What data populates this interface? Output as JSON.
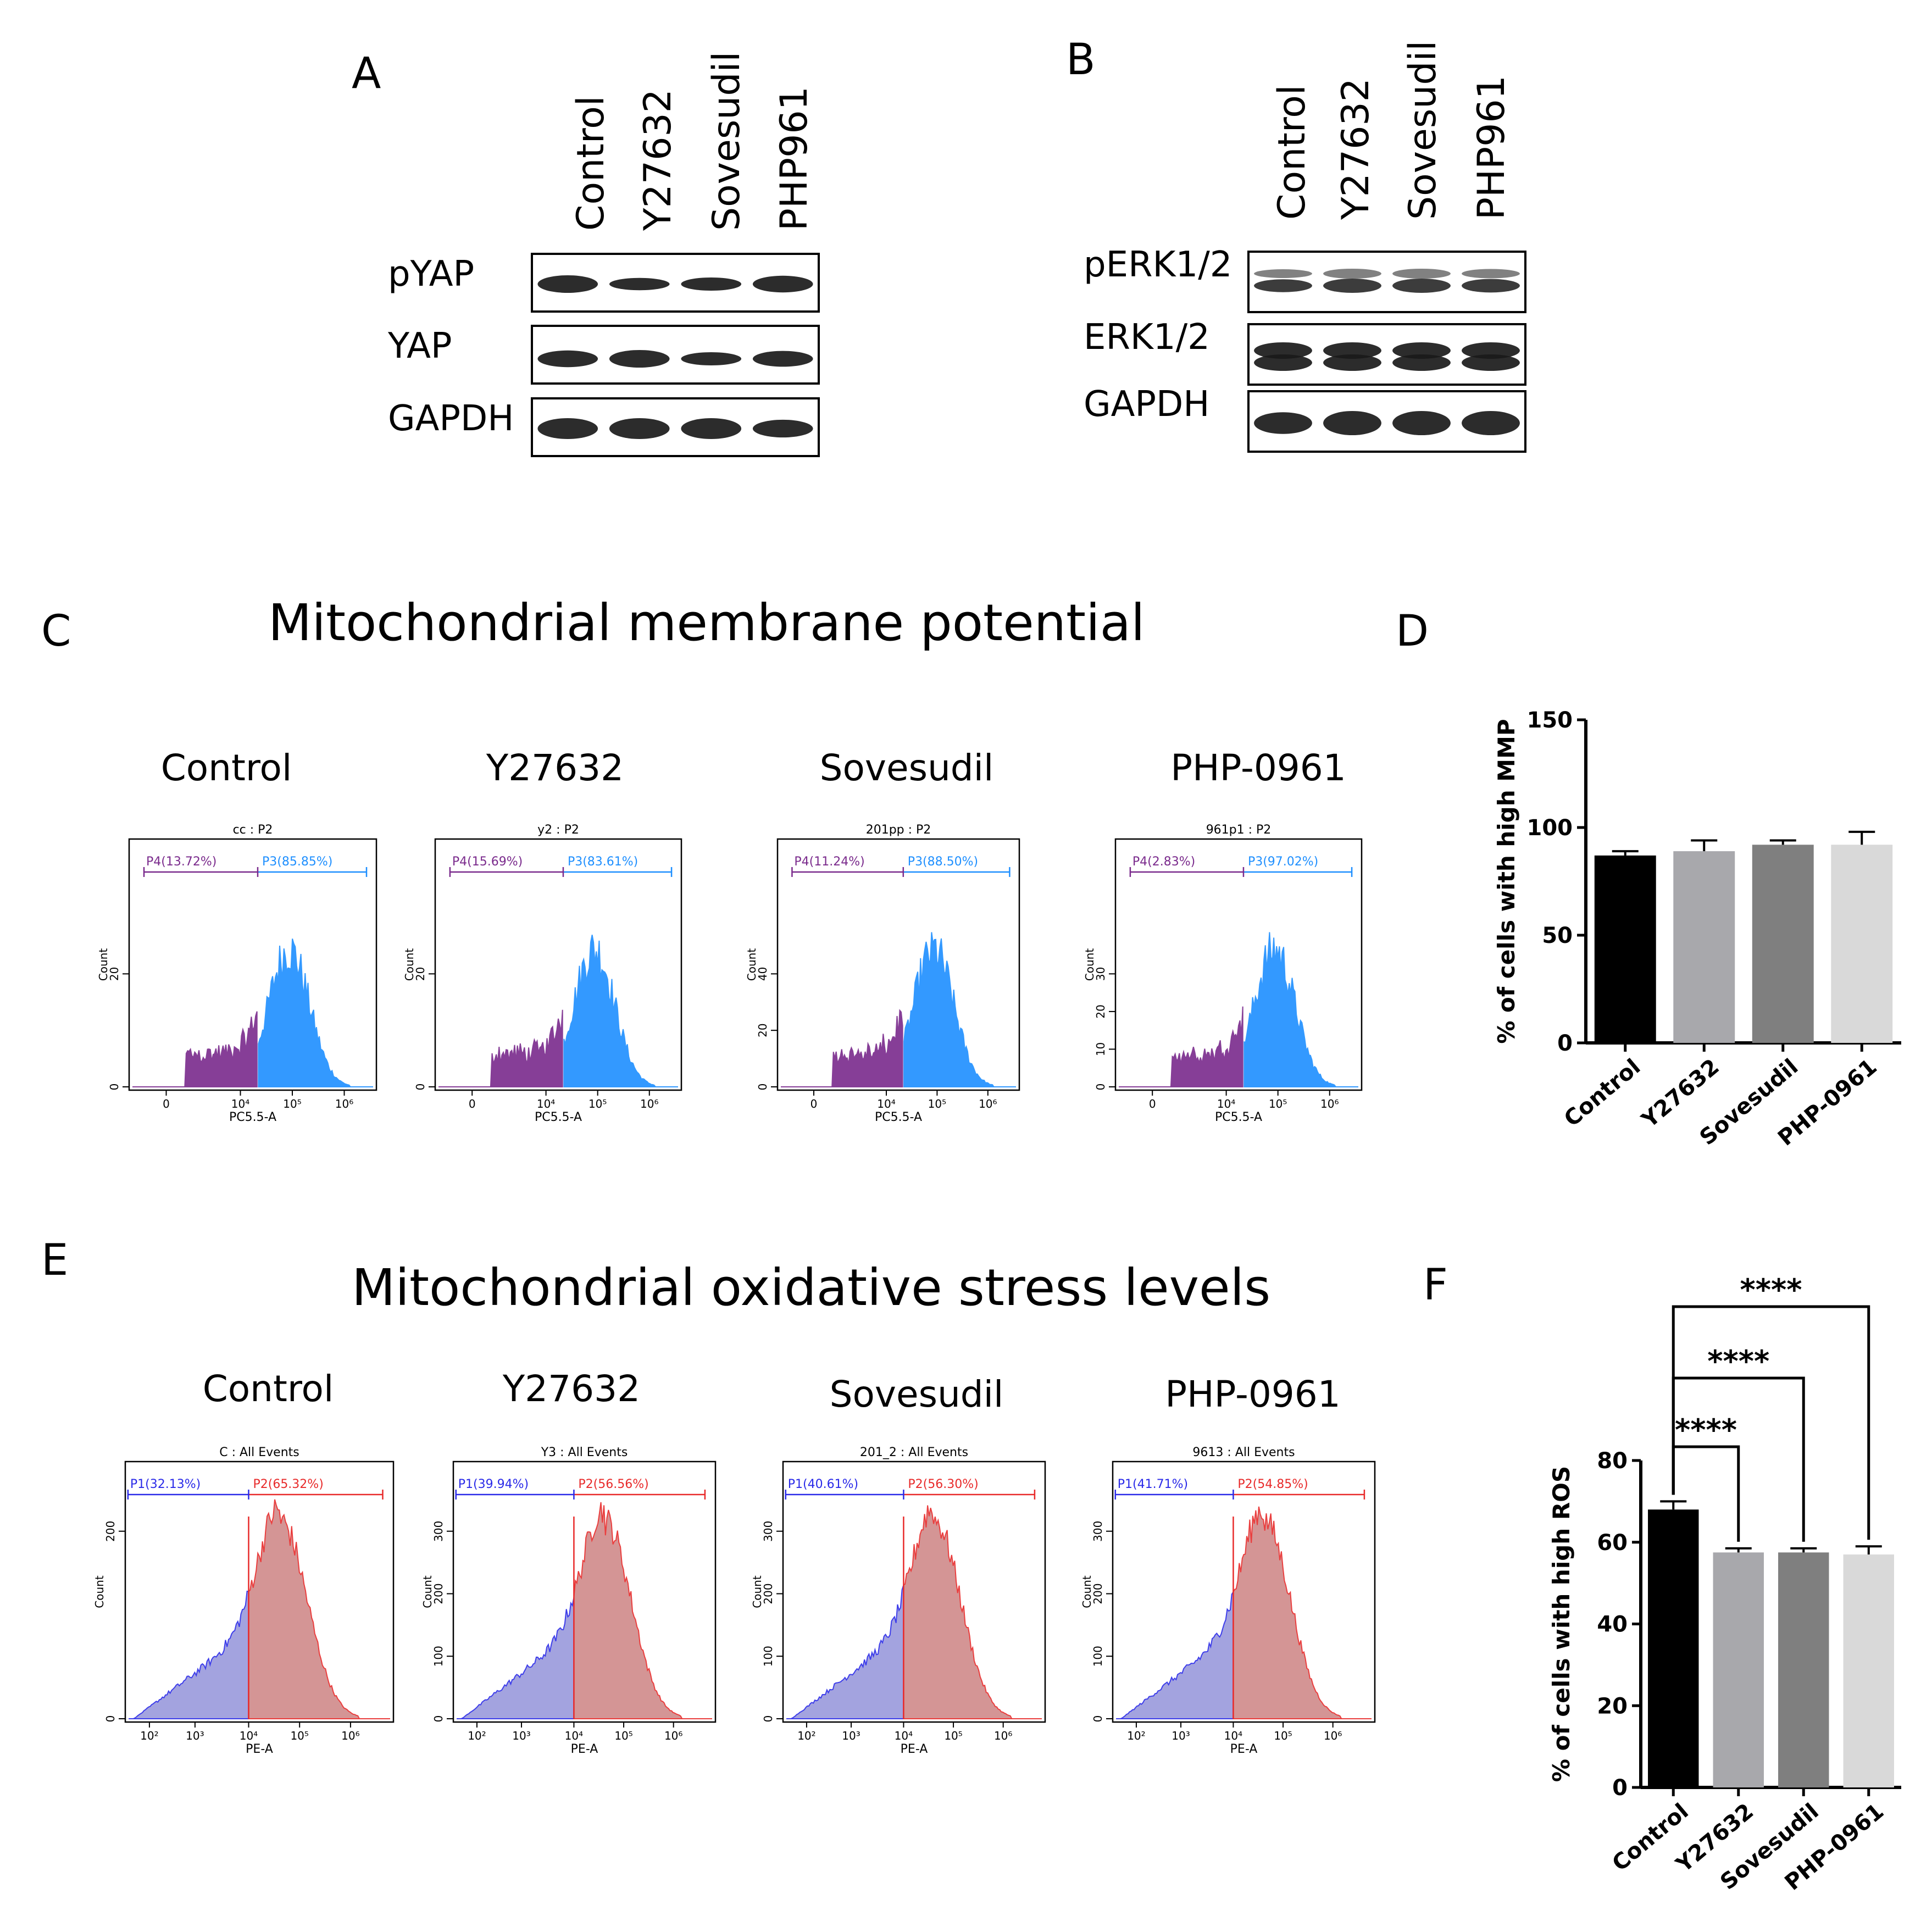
{
  "panels": {
    "A": {
      "letter": "A",
      "lanes": [
        "Control",
        "Y27632",
        "Sovesudil",
        "PHP961"
      ],
      "rows": [
        "pYAP",
        "YAP",
        "GAPDH"
      ]
    },
    "B": {
      "letter": "B",
      "lanes": [
        "Control",
        "Y27632",
        "Sovesudil",
        "PHP961"
      ],
      "rows": [
        "pERK1/2",
        "ERK1/2",
        "GAPDH"
      ]
    },
    "C": {
      "letter": "C",
      "title": "Mitochondrial membrane potential",
      "plots": [
        {
          "condition": "Control",
          "plot_title": "cc : P2",
          "left_gate": "P4(13.72%)",
          "right_gate": "P3(85.85%)",
          "y_ticks": [
            "0",
            "20"
          ],
          "x_ticks": [
            "0",
            "10⁴",
            "10⁵",
            "10⁶"
          ],
          "x_label": "PC5.5-A",
          "y_label": "Count"
        },
        {
          "condition": "Y27632",
          "plot_title": "y2 : P2",
          "left_gate": "P4(15.69%)",
          "right_gate": "P3(83.61%)",
          "y_ticks": [
            "0",
            "20"
          ],
          "x_ticks": [
            "0",
            "10⁴",
            "10⁵",
            "10⁶"
          ],
          "x_label": "PC5.5-A",
          "y_label": "Count"
        },
        {
          "condition": "Sovesudil",
          "plot_title": "201pp : P2",
          "left_gate": "P4(11.24%)",
          "right_gate": "P3(88.50%)",
          "y_ticks": [
            "0",
            "20",
            "40"
          ],
          "x_ticks": [
            "0",
            "10⁴",
            "10⁵",
            "10⁶"
          ],
          "x_label": "PC5.5-A",
          "y_label": "Count"
        },
        {
          "condition": "PHP-0961",
          "plot_title": "961p1 : P2",
          "left_gate": "P4(2.83%)",
          "right_gate": "P3(97.02%)",
          "y_ticks": [
            "0",
            "10",
            "20",
            "30"
          ],
          "x_ticks": [
            "0",
            "10⁴",
            "10⁵",
            "10⁶"
          ],
          "x_label": "PC5.5-A",
          "y_label": "Count"
        }
      ]
    },
    "E": {
      "letter": "E",
      "title": "Mitochondrial oxidative stress levels",
      "plots": [
        {
          "condition": "Control",
          "plot_title": "C : All Events",
          "left_gate": "P1(32.13%)",
          "right_gate": "P2(65.32%)",
          "y_ticks": [
            "0",
            "200"
          ],
          "x_ticks": [
            "10²",
            "10³",
            "10⁴",
            "10⁵",
            "10⁶"
          ],
          "x_label": "PE-A",
          "y_label": "Count"
        },
        {
          "condition": "Y27632",
          "plot_title": "Y3 : All Events",
          "left_gate": "P1(39.94%)",
          "right_gate": "P2(56.56%)",
          "y_ticks": [
            "0",
            "100",
            "200",
            "300"
          ],
          "x_ticks": [
            "10²",
            "10³",
            "10⁴",
            "10⁵",
            "10⁶"
          ],
          "x_label": "PE-A",
          "y_label": "Count"
        },
        {
          "condition": "Sovesudil",
          "plot_title": "201_2 : All Events",
          "left_gate": "P1(40.61%)",
          "right_gate": "P2(56.30%)",
          "y_ticks": [
            "0",
            "100",
            "200",
            "300"
          ],
          "x_ticks": [
            "10²",
            "10³",
            "10⁴",
            "10⁵",
            "10⁶"
          ],
          "x_label": "PE-A",
          "y_label": "Count"
        },
        {
          "condition": "PHP-0961",
          "plot_title": "9613 : All Events",
          "left_gate": "P1(41.71%)",
          "right_gate": "P2(54.85%)",
          "y_ticks": [
            "0",
            "100",
            "200",
            "300"
          ],
          "x_ticks": [
            "10²",
            "10³",
            "10⁴",
            "10⁵",
            "10⁶"
          ],
          "x_label": "PE-A",
          "y_label": "Count"
        }
      ]
    },
    "D": {
      "letter": "D"
    },
    "F": {
      "letter": "F",
      "significance": [
        "****",
        "****",
        "****"
      ]
    }
  },
  "colors": {
    "mmp_high": "#1e8fff",
    "mmp_low": "#7a2a8c",
    "ros_low": "#2a2ae8",
    "ros_high": "#e82a2a",
    "bar_control": "#000000",
    "bar_y27632": "#a8a8ac",
    "bar_sovesudil": "#7f7f7f",
    "bar_php0961": "#d9d9d9"
  },
  "chart_data": [
    {
      "type": "bar",
      "panel": "D",
      "categories": [
        "Control",
        "Y27632",
        "Sovesudil",
        "PHP-0961"
      ],
      "values": [
        87,
        89,
        92,
        92
      ],
      "errors": [
        2,
        5,
        2,
        6
      ],
      "ylabel": "% of cells with high MMP",
      "ylim": [
        0,
        150
      ],
      "yticks": [
        0,
        50,
        100,
        150
      ]
    },
    {
      "type": "bar",
      "panel": "F",
      "categories": [
        "Control",
        "Y27632",
        "Sovesudil",
        "PHP-0961"
      ],
      "values": [
        68,
        57.5,
        57.5,
        57
      ],
      "errors": [
        2,
        1,
        1,
        2
      ],
      "ylabel": "% of cells with high ROS",
      "ylim": [
        0,
        80
      ],
      "yticks": [
        0,
        20,
        40,
        60,
        80
      ],
      "significance": [
        {
          "from": "Control",
          "to": "Y27632",
          "label": "****"
        },
        {
          "from": "Control",
          "to": "Sovesudil",
          "label": "****"
        },
        {
          "from": "Control",
          "to": "PHP-0961",
          "label": "****"
        }
      ]
    }
  ]
}
